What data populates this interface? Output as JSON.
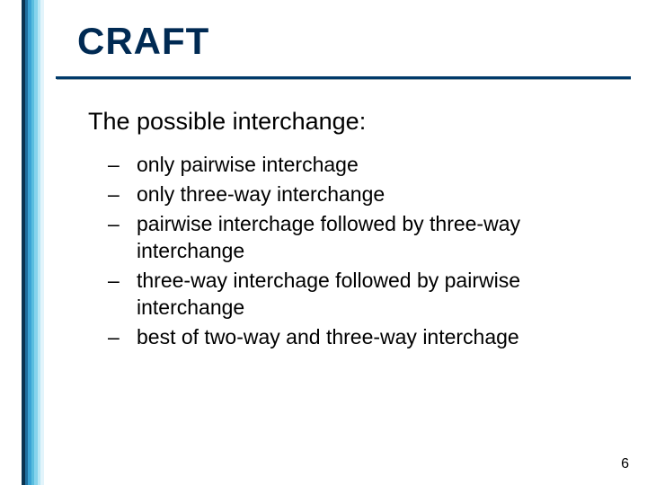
{
  "slide": {
    "title": "CRAFT",
    "title_color": "#002a53",
    "subtitle": "The possible interchange:",
    "bullets": [
      "only pairwise interchage",
      "only three-way interchange",
      "pairwise interchage followed by three-way interchange",
      "three-way interchage followed by pairwise interchange",
      "best of two-way and three-way interchage"
    ],
    "page_number": "6"
  },
  "sidebar": {
    "stripes": [
      "#0a3452",
      "#1f6f9f",
      "#3aa3d4",
      "#5abedf",
      "#86d3ec",
      "#b9e7f5",
      "#e2f4fb"
    ]
  },
  "rule": {
    "main_color": "#003a6a",
    "shadow_color": "#99aab3"
  }
}
